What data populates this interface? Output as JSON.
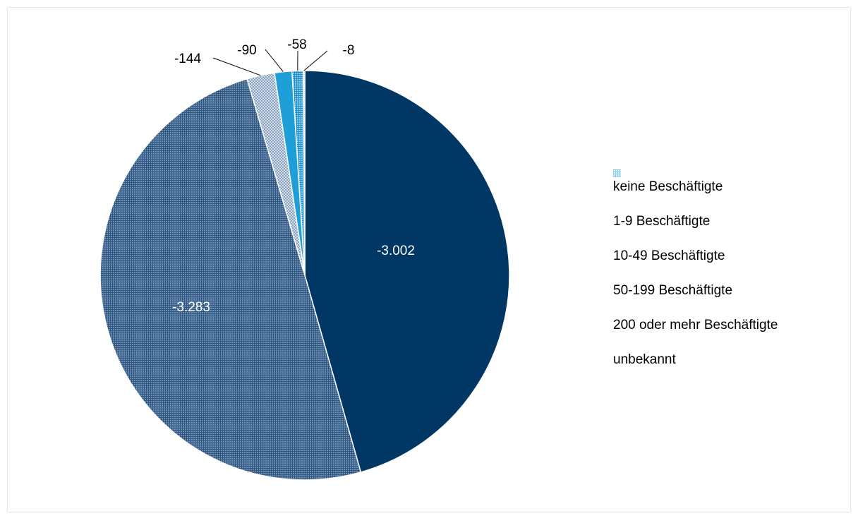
{
  "chart_data": {
    "type": "pie",
    "title": "",
    "legend_position": "right",
    "categories": [
      "keine Beschäftigte",
      "1-9 Beschäftigte",
      "10-49 Beschäftigte",
      "50-199 Beschäftigte",
      "200 oder mehr Beschäftigte",
      "unbekannt"
    ],
    "values": [
      -3002,
      -3283,
      -144,
      -90,
      -58,
      -8
    ],
    "data_labels": [
      "-3.002",
      "-3.283",
      "-144",
      "-90",
      "-58",
      "-8"
    ],
    "colors": [
      "#003764",
      "#4a6d93",
      "#aebfd3",
      "#1f9fd8",
      "#3aa9d9",
      "#b3dcf0"
    ],
    "patterns": [
      "solid",
      "fine-grid",
      "dotted-grid",
      "solid",
      "grid",
      "light-grid"
    ]
  }
}
